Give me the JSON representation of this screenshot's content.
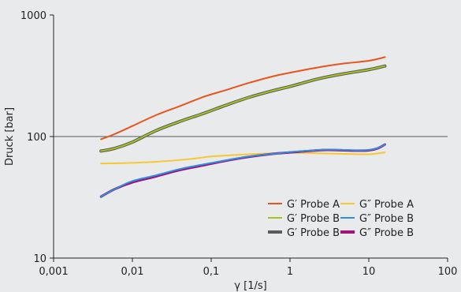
{
  "chart_data": {
    "type": "line",
    "title": "",
    "xlabel": "γ [1/s]",
    "ylabel": "Druck [bar]",
    "x_scale": "log",
    "y_scale": "log",
    "xlim": [
      0.001,
      100
    ],
    "ylim": [
      10,
      1000
    ],
    "x_ticks": [
      "0,001",
      "0,01",
      "0,1",
      "1",
      "10",
      "100"
    ],
    "y_ticks": [
      "10",
      "100",
      "1000"
    ],
    "grid": "horizontal at 100",
    "legend_position": "lower-right",
    "series": [
      {
        "name": "G′ Probe A",
        "color": "#e8541e",
        "width": 2,
        "x": [
          0.004,
          0.006,
          0.01,
          0.02,
          0.04,
          0.08,
          0.15,
          0.3,
          0.6,
          1,
          2,
          3,
          5,
          10,
          16
        ],
        "y": [
          95,
          105,
          122,
          150,
          178,
          212,
          240,
          276,
          312,
          335,
          365,
          382,
          400,
          420,
          450
        ]
      },
      {
        "name": "G″ Probe A",
        "color": "#f7c832",
        "width": 2,
        "x": [
          0.004,
          0.008,
          0.02,
          0.05,
          0.1,
          0.2,
          0.5,
          1,
          2,
          3,
          5,
          10,
          16
        ],
        "y": [
          60,
          60.5,
          62,
          65,
          68.5,
          70.5,
          72.5,
          73.5,
          73,
          72.5,
          72,
          71.5,
          74
        ]
      },
      {
        "name": "G′ Probe B",
        "color": "#5b5b5b",
        "width": 4,
        "x": [
          0.004,
          0.006,
          0.01,
          0.02,
          0.04,
          0.08,
          0.15,
          0.3,
          0.6,
          1,
          2,
          3,
          5,
          10,
          16
        ],
        "y": [
          76,
          80,
          90,
          112,
          133,
          155,
          180,
          210,
          238,
          258,
          292,
          310,
          330,
          355,
          380
        ]
      },
      {
        "name": "G′ Probe B",
        "color": "#a9c01f",
        "width": 2,
        "x": [
          0.004,
          0.006,
          0.01,
          0.02,
          0.04,
          0.08,
          0.15,
          0.3,
          0.6,
          1,
          2,
          3,
          5,
          10,
          16
        ],
        "y": [
          76,
          80,
          90,
          112,
          133,
          155,
          180,
          210,
          238,
          258,
          292,
          310,
          330,
          355,
          380
        ]
      },
      {
        "name": "G″ Probe B",
        "color": "#a0117e",
        "width": 3,
        "x": [
          0.004,
          0.006,
          0.01,
          0.02,
          0.04,
          0.08,
          0.15,
          0.3,
          0.6,
          1,
          2,
          3,
          5,
          7,
          10,
          13,
          16
        ],
        "y": [
          32,
          37,
          42,
          47,
          53,
          58,
          63,
          68,
          72,
          74,
          76.5,
          77.5,
          77,
          76.5,
          77,
          80,
          86
        ]
      },
      {
        "name": "G″ Probe B",
        "color": "#2e8fdb",
        "width": 2,
        "x": [
          0.004,
          0.006,
          0.01,
          0.02,
          0.04,
          0.08,
          0.15,
          0.3,
          0.6,
          1,
          2,
          3,
          5,
          7,
          10,
          13,
          16
        ],
        "y": [
          32,
          37,
          43,
          48,
          54,
          59,
          63.5,
          68.5,
          72,
          74.5,
          77,
          78,
          77.5,
          77,
          77.5,
          80.5,
          86
        ]
      }
    ],
    "legend": [
      {
        "label": "G′ Probe A",
        "color": "#e8541e",
        "width": 2
      },
      {
        "label": "G″ Probe A",
        "color": "#f7c832",
        "width": 2
      },
      {
        "label": "G′ Probe B",
        "color": "#a9c01f",
        "width": 2
      },
      {
        "label": "G″ Probe B",
        "color": "#2e8fdb",
        "width": 2
      },
      {
        "label": "G′ Probe B",
        "color": "#5b5b5b",
        "width": 4
      },
      {
        "label": "G″ Probe B",
        "color": "#a0117e",
        "width": 4
      }
    ]
  }
}
